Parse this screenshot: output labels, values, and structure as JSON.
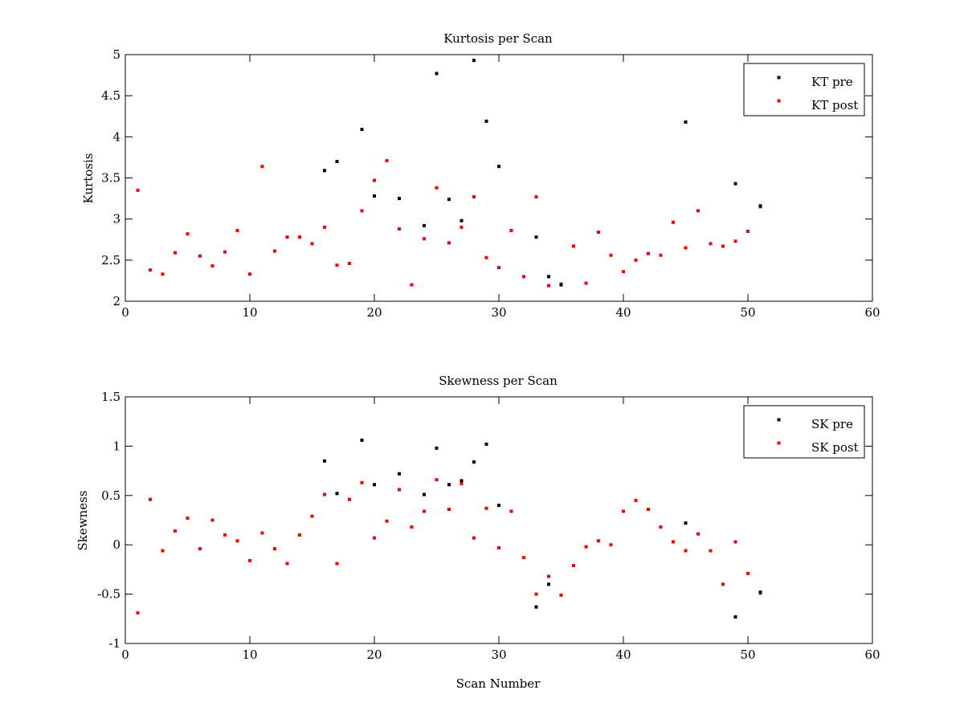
{
  "chart_data": [
    {
      "type": "scatter",
      "title": "Kurtosis per Scan",
      "xlabel": "",
      "ylabel": "Kurtosis",
      "xlim": [
        0,
        60
      ],
      "ylim": [
        2,
        5
      ],
      "xticks": [
        "0",
        "10",
        "20",
        "30",
        "40",
        "50",
        "60"
      ],
      "yticks": [
        "2",
        "2.5",
        "3",
        "3.5",
        "4",
        "4.5",
        "5"
      ],
      "grid": false,
      "legend": "top-right",
      "series": [
        {
          "name": "KT pre",
          "color": "#000000",
          "points": [
            [
              16,
              3.59
            ],
            [
              17,
              3.7
            ],
            [
              19,
              4.09
            ],
            [
              20,
              3.28
            ],
            [
              22,
              3.25
            ],
            [
              24,
              2.92
            ],
            [
              25,
              4.77
            ],
            [
              26,
              3.24
            ],
            [
              27,
              2.98
            ],
            [
              28,
              4.93
            ],
            [
              29,
              4.19
            ],
            [
              30,
              3.64
            ],
            [
              33,
              2.78
            ],
            [
              34,
              2.3
            ],
            [
              35,
              2.2
            ],
            [
              45,
              4.18
            ],
            [
              49,
              3.43
            ],
            [
              51,
              3.16
            ]
          ]
        },
        {
          "name": "KT post",
          "color": "#ff0000",
          "points": [
            [
              1,
              3.35
            ],
            [
              2,
              2.38
            ],
            [
              3,
              2.33
            ],
            [
              4,
              2.59
            ],
            [
              5,
              2.82
            ],
            [
              6,
              2.55
            ],
            [
              7,
              2.43
            ],
            [
              8,
              2.6
            ],
            [
              9,
              2.86
            ],
            [
              10,
              2.33
            ],
            [
              11,
              3.64
            ],
            [
              12,
              2.61
            ],
            [
              13,
              2.78
            ],
            [
              14,
              2.78
            ],
            [
              15,
              2.7
            ],
            [
              16,
              2.9
            ],
            [
              17,
              2.44
            ],
            [
              18,
              2.46
            ],
            [
              19,
              3.1
            ],
            [
              20,
              3.47
            ],
            [
              21,
              3.71
            ],
            [
              22,
              2.88
            ],
            [
              23,
              2.2
            ],
            [
              24,
              2.76
            ],
            [
              25,
              3.38
            ],
            [
              26,
              2.71
            ],
            [
              27,
              2.9
            ],
            [
              28,
              3.27
            ],
            [
              29,
              2.53
            ],
            [
              30,
              2.41
            ],
            [
              31,
              2.86
            ],
            [
              32,
              2.3
            ],
            [
              33,
              3.27
            ],
            [
              34,
              2.19
            ],
            [
              35,
              2.21
            ],
            [
              36,
              2.67
            ],
            [
              37,
              2.22
            ],
            [
              38,
              2.84
            ],
            [
              39,
              2.56
            ],
            [
              40,
              2.36
            ],
            [
              41,
              2.5
            ],
            [
              42,
              2.58
            ],
            [
              43,
              2.56
            ],
            [
              44,
              2.96
            ],
            [
              45,
              2.65
            ],
            [
              46,
              3.1
            ],
            [
              47,
              2.7
            ],
            [
              48,
              2.67
            ],
            [
              49,
              2.73
            ],
            [
              50,
              2.85
            ],
            [
              51,
              3.15
            ]
          ]
        }
      ]
    },
    {
      "type": "scatter",
      "title": "Skewness per Scan",
      "xlabel": "Scan Number",
      "ylabel": "Skewness",
      "xlim": [
        0,
        60
      ],
      "ylim": [
        -1,
        1.5
      ],
      "xticks": [
        "0",
        "10",
        "20",
        "30",
        "40",
        "50",
        "60"
      ],
      "yticks": [
        "-1",
        "-0.5",
        "0",
        "0.5",
        "1",
        "1.5"
      ],
      "grid": false,
      "legend": "top-right",
      "series": [
        {
          "name": "SK pre",
          "color": "#000000",
          "points": [
            [
              16,
              0.85
            ],
            [
              17,
              0.52
            ],
            [
              19,
              1.06
            ],
            [
              20,
              0.61
            ],
            [
              22,
              0.72
            ],
            [
              24,
              0.51
            ],
            [
              25,
              0.98
            ],
            [
              26,
              0.61
            ],
            [
              27,
              0.65
            ],
            [
              28,
              0.84
            ],
            [
              29,
              1.02
            ],
            [
              30,
              0.4
            ],
            [
              33,
              -0.63
            ],
            [
              34,
              -0.4
            ],
            [
              45,
              0.22
            ],
            [
              49,
              -0.73
            ],
            [
              51,
              -0.48
            ]
          ]
        },
        {
          "name": "SK post",
          "color": "#ff0000",
          "points": [
            [
              1,
              -0.69
            ],
            [
              2,
              0.46
            ],
            [
              3,
              -0.06
            ],
            [
              4,
              0.14
            ],
            [
              5,
              0.27
            ],
            [
              6,
              -0.04
            ],
            [
              7,
              0.25
            ],
            [
              8,
              0.1
            ],
            [
              9,
              0.04
            ],
            [
              10,
              -0.16
            ],
            [
              11,
              0.12
            ],
            [
              12,
              -0.04
            ],
            [
              13,
              -0.19
            ],
            [
              14,
              0.1
            ],
            [
              15,
              0.29
            ],
            [
              16,
              0.51
            ],
            [
              17,
              -0.19
            ],
            [
              18,
              0.46
            ],
            [
              19,
              0.63
            ],
            [
              20,
              0.07
            ],
            [
              21,
              0.24
            ],
            [
              22,
              0.56
            ],
            [
              23,
              0.18
            ],
            [
              24,
              0.34
            ],
            [
              25,
              0.66
            ],
            [
              26,
              0.36
            ],
            [
              27,
              0.62
            ],
            [
              28,
              0.07
            ],
            [
              29,
              0.37
            ],
            [
              30,
              -0.03
            ],
            [
              31,
              0.34
            ],
            [
              32,
              -0.13
            ],
            [
              33,
              -0.5
            ],
            [
              34,
              -0.32
            ],
            [
              35,
              -0.51
            ],
            [
              36,
              -0.21
            ],
            [
              37,
              -0.02
            ],
            [
              38,
              0.04
            ],
            [
              39,
              0.0
            ],
            [
              40,
              0.34
            ],
            [
              41,
              0.45
            ],
            [
              42,
              0.36
            ],
            [
              43,
              0.18
            ],
            [
              44,
              0.03
            ],
            [
              45,
              -0.06
            ],
            [
              46,
              0.11
            ],
            [
              47,
              -0.06
            ],
            [
              48,
              -0.4
            ],
            [
              49,
              0.03
            ],
            [
              50,
              -0.29
            ],
            [
              51,
              -0.49
            ]
          ]
        }
      ]
    }
  ]
}
